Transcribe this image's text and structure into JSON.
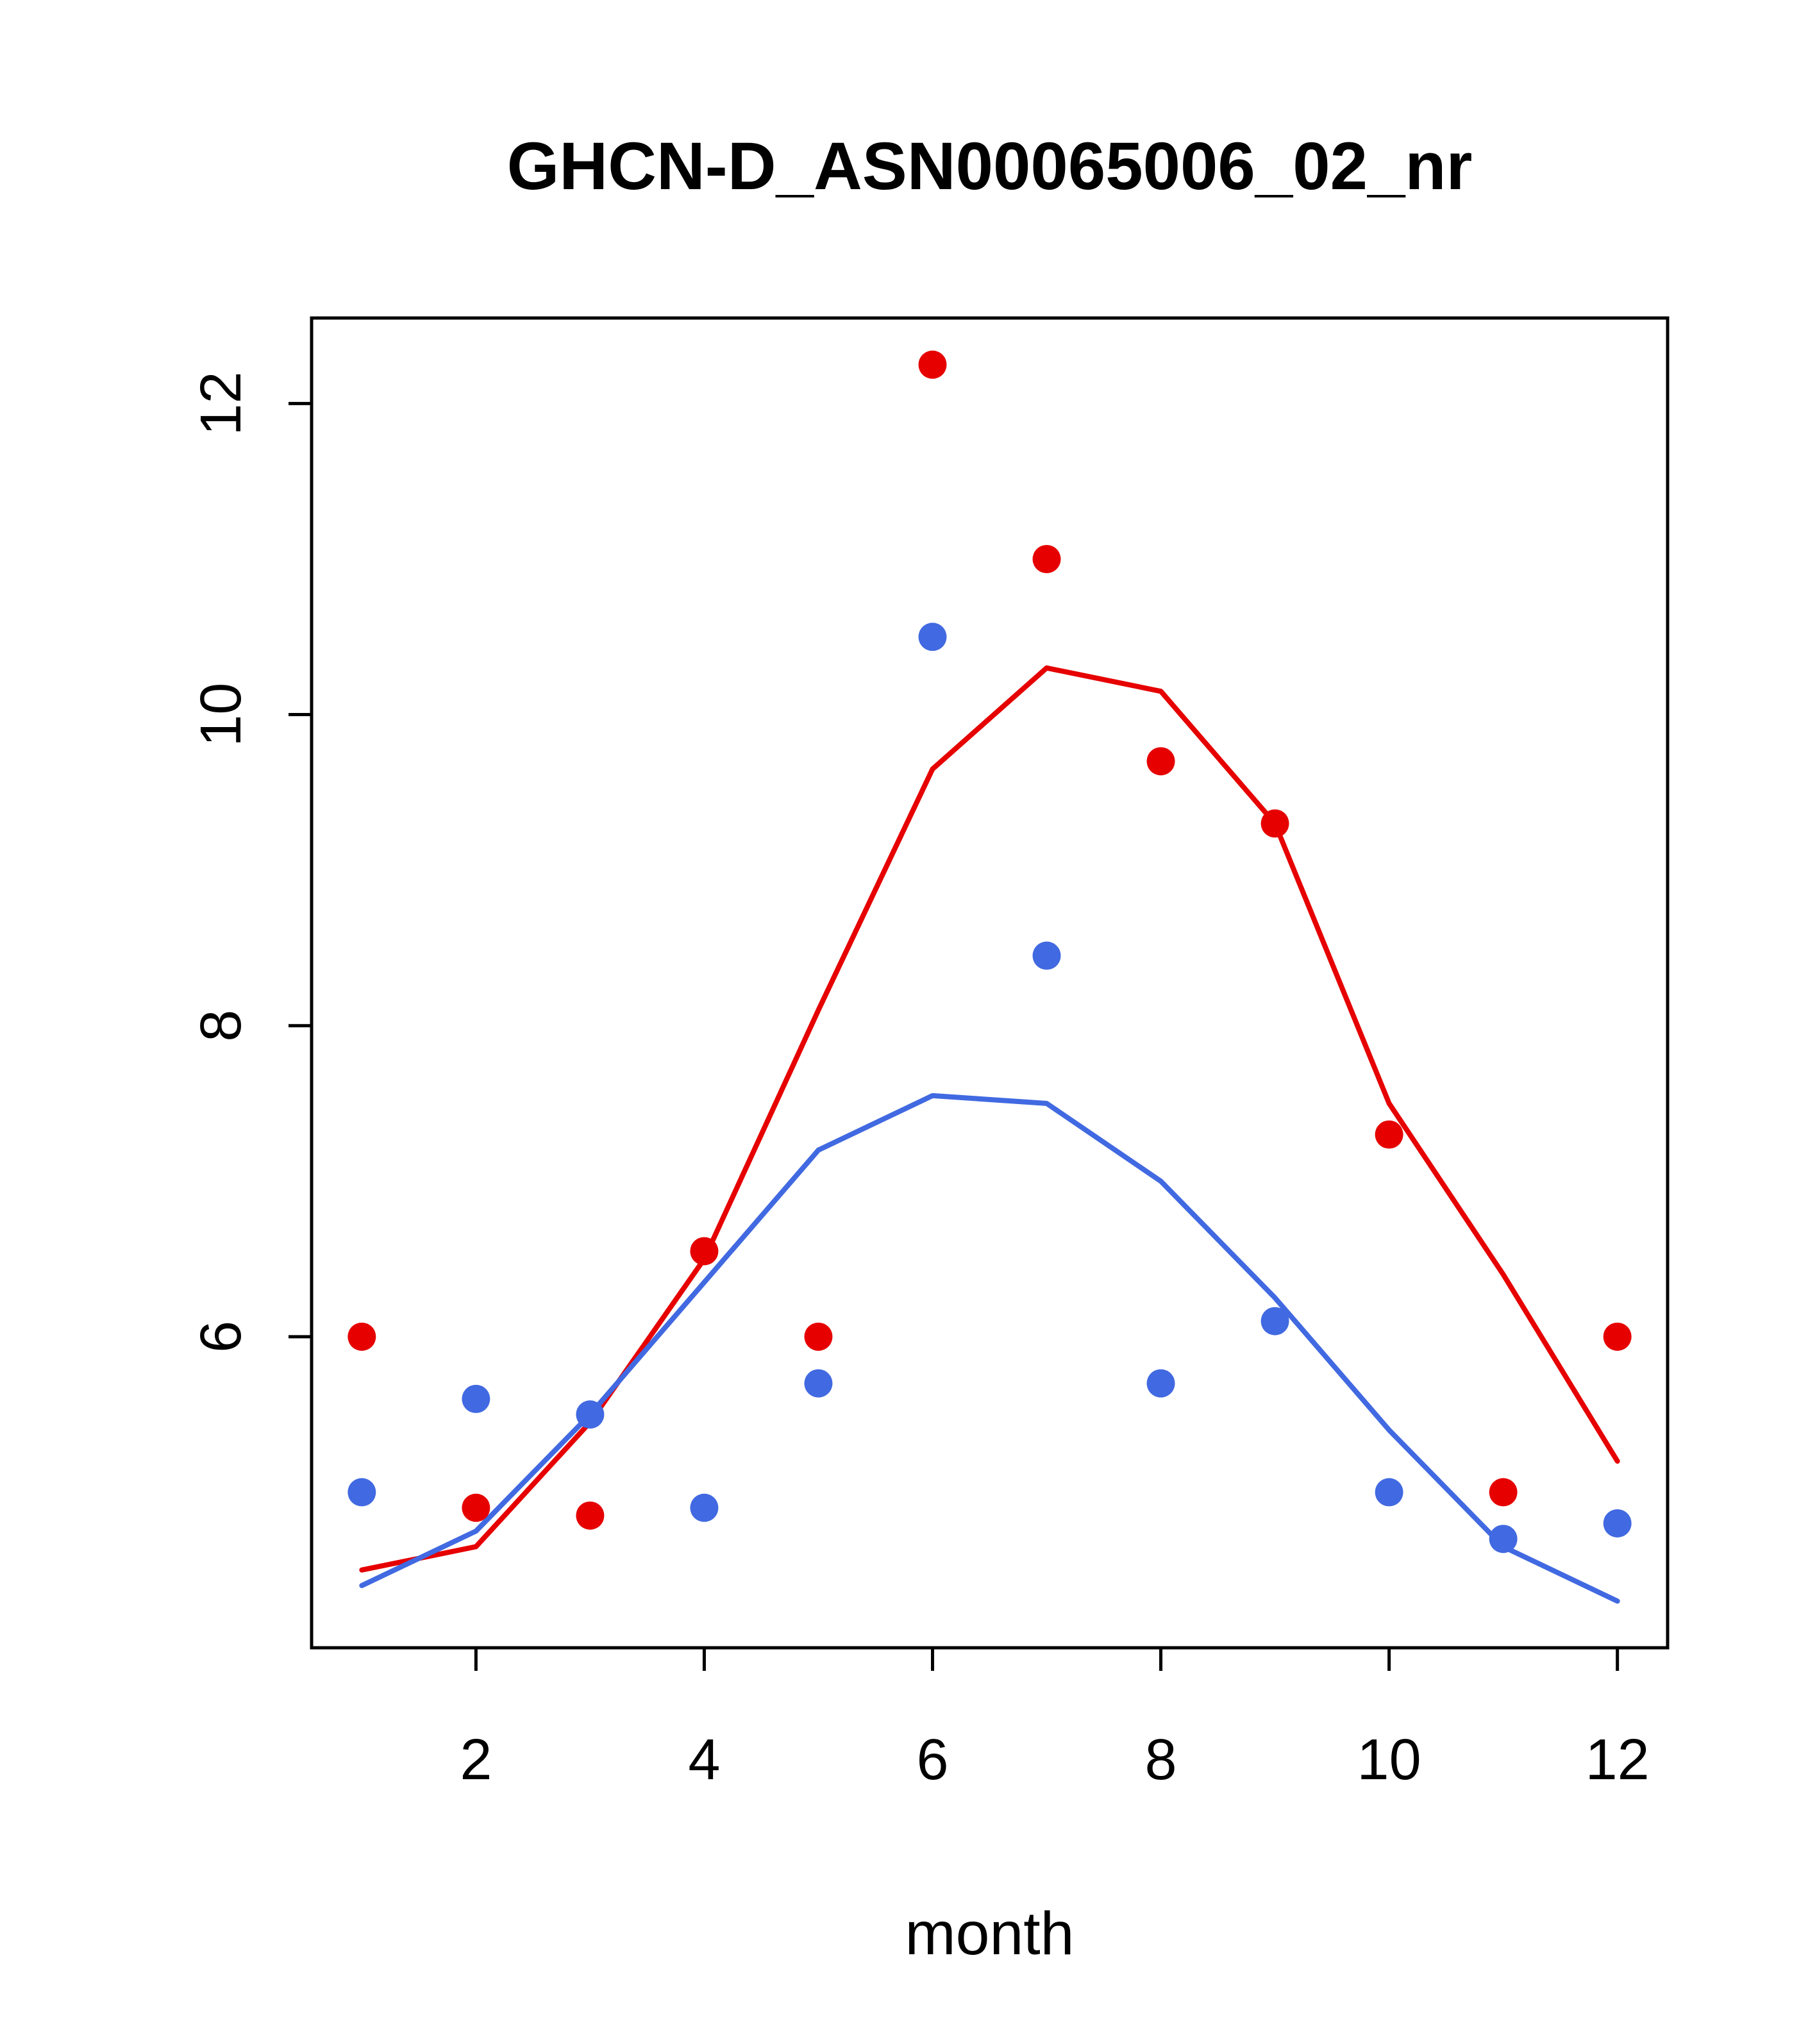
{
  "figure": {
    "background": "#ffffff",
    "axis_color": "#000000",
    "text_color": "#000000"
  },
  "chart_data": {
    "type": "scatter",
    "title": "GHCN-D_ASN00065006_02_nr",
    "xlabel": "month",
    "ylabel": "",
    "grid": false,
    "legend": "none",
    "xlim": [
      0.56,
      12.44
    ],
    "ylim": [
      4.0,
      12.55
    ],
    "x_ticks": [
      2,
      4,
      6,
      8,
      10,
      12
    ],
    "y_ticks": [
      6,
      8,
      10,
      12
    ],
    "x": [
      1,
      2,
      3,
      4,
      5,
      6,
      7,
      8,
      9,
      10,
      11,
      12
    ],
    "series": [
      {
        "name": "red-points",
        "kind": "points",
        "color": "#e60000",
        "values": [
          6.0,
          4.9,
          4.85,
          6.55,
          6.0,
          12.25,
          11.0,
          9.7,
          9.3,
          7.3,
          5.0,
          6.0
        ]
      },
      {
        "name": "red-line",
        "kind": "line",
        "color": "#e60000",
        "values": [
          4.5,
          4.65,
          5.45,
          6.5,
          8.1,
          9.65,
          10.3,
          10.15,
          9.3,
          7.5,
          6.4,
          5.2
        ]
      },
      {
        "name": "blue-points",
        "kind": "points",
        "color": "#4169e1",
        "values": [
          5.0,
          5.6,
          5.5,
          4.9,
          5.7,
          10.5,
          8.45,
          5.7,
          6.1,
          5.0,
          4.7,
          4.8
        ]
      },
      {
        "name": "blue-line",
        "kind": "line",
        "color": "#4169e1",
        "values": [
          4.4,
          4.75,
          5.5,
          6.35,
          7.2,
          7.55,
          7.5,
          7.0,
          6.25,
          5.4,
          4.65,
          4.3
        ]
      }
    ]
  }
}
